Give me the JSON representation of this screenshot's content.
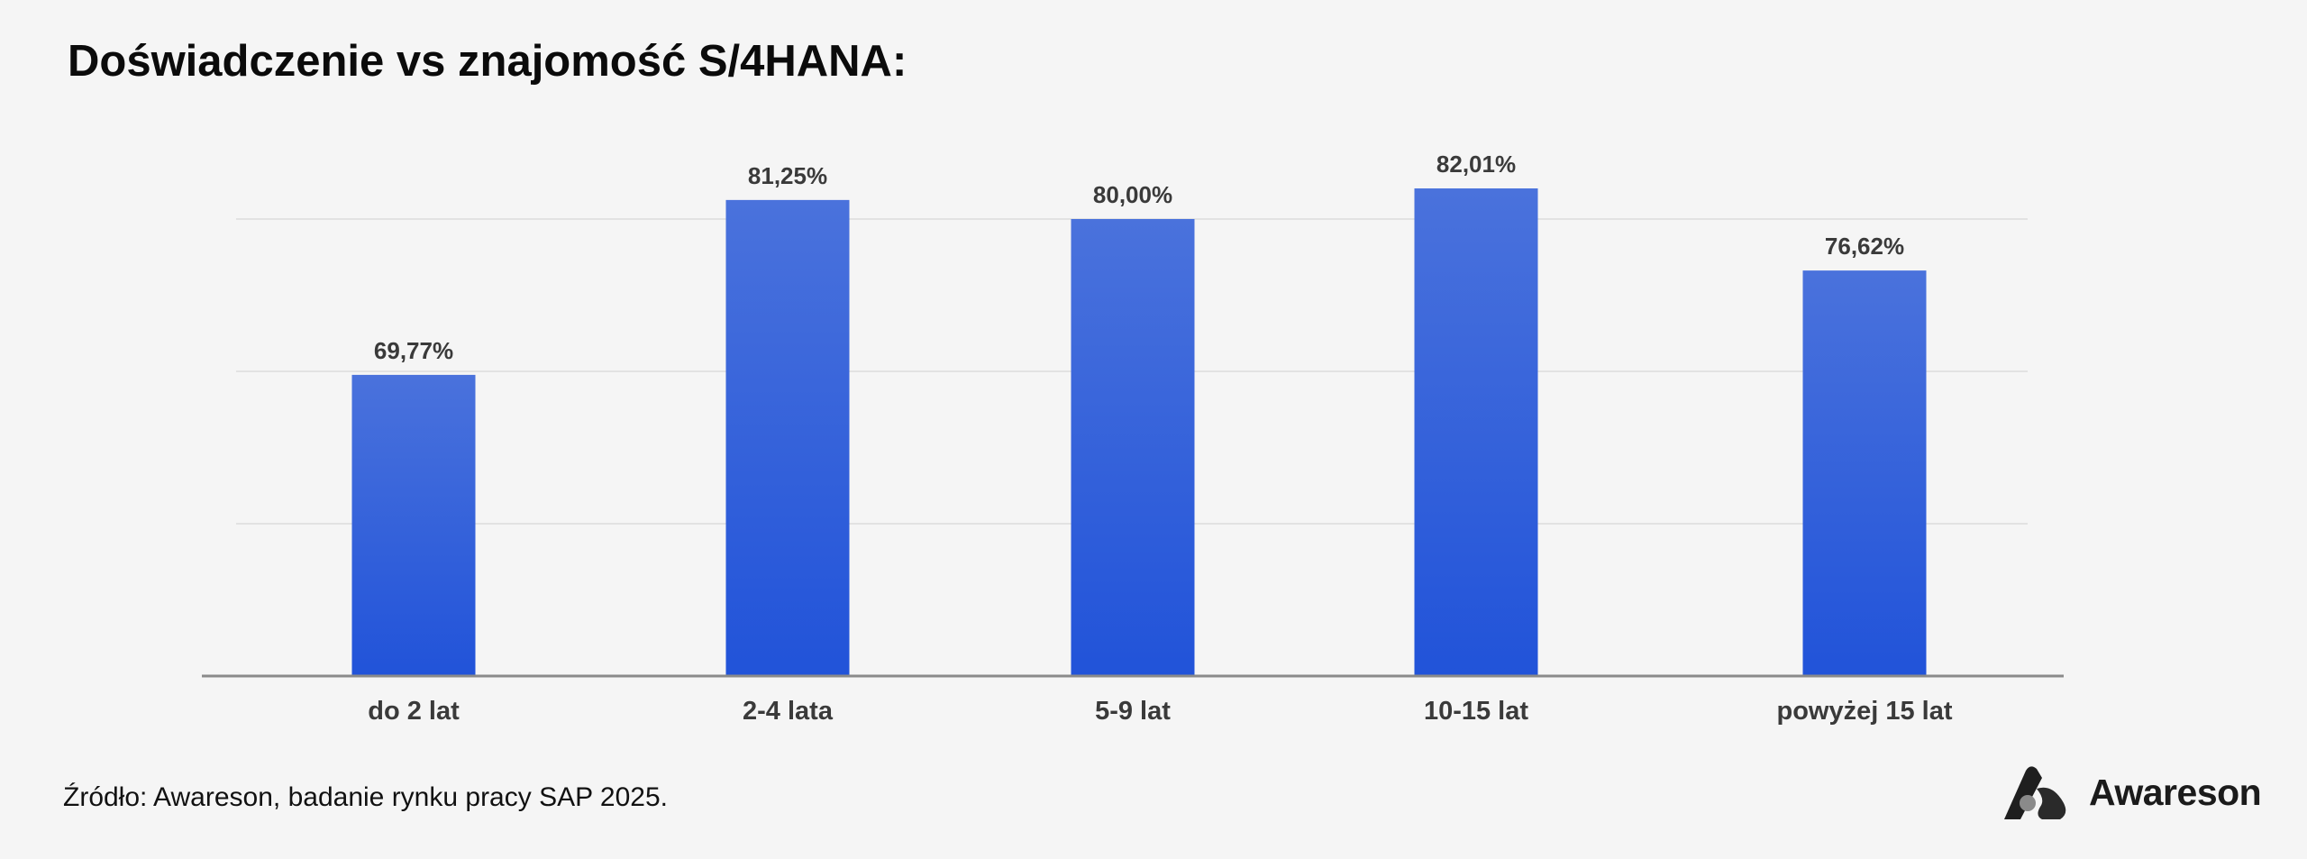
{
  "title": "Doświadczenie vs znajomość S/4HANA:",
  "source": "Źródło: Awareson, badanie rynku pracy SAP 2025.",
  "logo": {
    "text": "Awareson",
    "icon": "awareson-logo-icon"
  },
  "colors": {
    "bar_top": "#4a72dc",
    "bar_bottom": "#2153d9",
    "label": "#3a3a3a",
    "grid": "#dcdcdc",
    "axis": "#8a8a8a"
  },
  "chart_data": {
    "type": "bar",
    "categories": [
      "do 2 lat",
      "2-4 lata",
      "5-9 lat",
      "10-15 lat",
      "powyżej 15 lat"
    ],
    "values": [
      69.77,
      81.25,
      80.0,
      82.01,
      76.62
    ],
    "value_labels": [
      "69,77%",
      "81,25%",
      "80,00%",
      "82,01%",
      "76,62%"
    ],
    "title": "Doświadczenie vs znajomość S/4HANA:",
    "xlabel": "",
    "ylabel": "",
    "ylim": [
      50,
      84
    ],
    "yticks": [
      60,
      70,
      80
    ],
    "grid": true,
    "legend": false
  }
}
